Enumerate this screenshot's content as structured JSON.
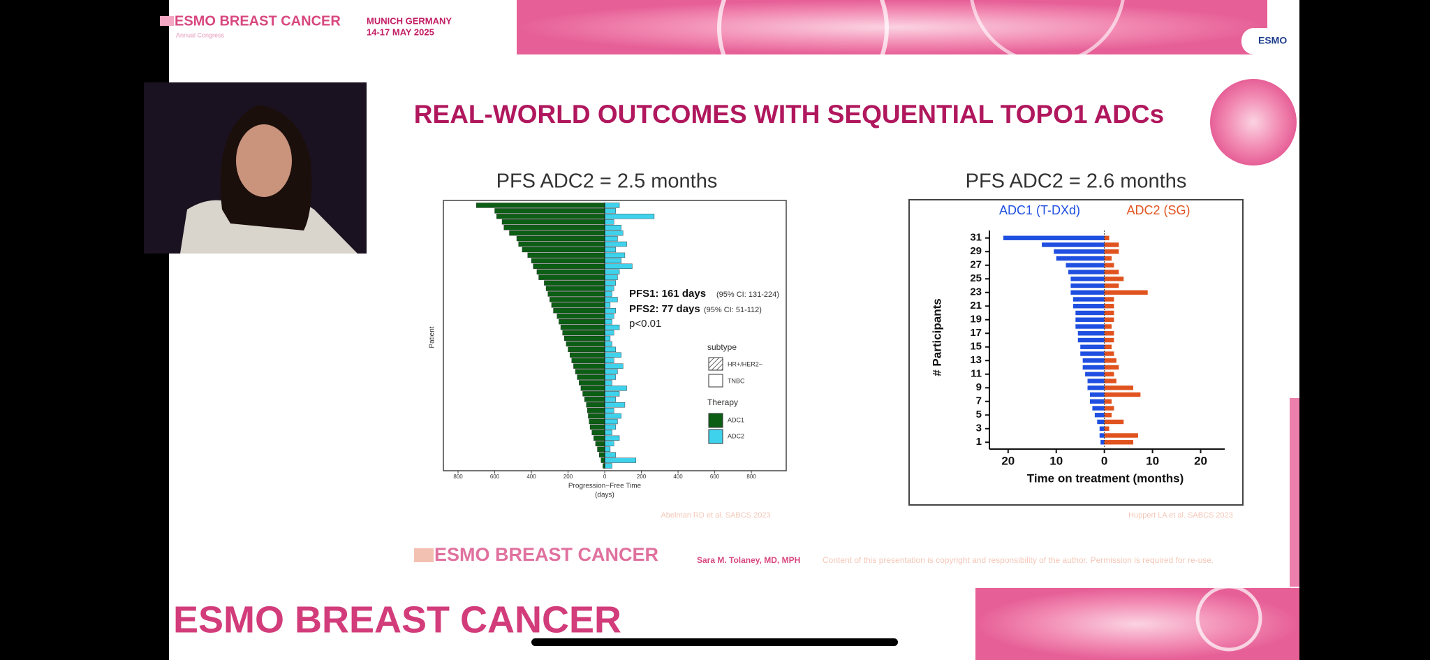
{
  "header": {
    "brand": "ESMO BREAST CANCER",
    "brand_sub": "Annual Congress",
    "city": "MUNICH GERMANY",
    "dates": "14-17 MAY 2025",
    "logo": "ESMO"
  },
  "slide": {
    "title": "REAL-WORLD OUTCOMES WITH SEQUENTIAL TOPO1 ADCs",
    "footer_brand": "ESMO BREAST CANCER",
    "presenter": "Sara M. Tolaney, MD, MPH",
    "disclaimer": "Content of this presentation is copyright and responsibility of the author. Permission is required for re-use."
  },
  "banner": "ESMO BREAST CANCER",
  "left_chart": {
    "type": "bar",
    "title": "PFS ADC2 = 2.5 months",
    "xlabel": "Progression−Free Time",
    "xunit": "(days)",
    "ylabel": "Patient",
    "citation": "Abelman RD et al. SABCS 2023",
    "annotations": [
      "PFS1: 161 days",
      "(95% CI: 131-224)",
      "PFS2: 77 days",
      "(95% CI: 51-112)",
      "p<0.01"
    ],
    "legend_subtype_title": "subtype",
    "legend_subtypes": [
      "HR+/HER2−",
      "TNBC"
    ],
    "legend_therapy_title": "Therapy",
    "xlim": [
      -880,
      990
    ],
    "xticks": [
      {
        "value": -800,
        "label": "800"
      },
      {
        "value": -600,
        "label": "600"
      },
      {
        "value": -400,
        "label": "400"
      },
      {
        "value": -200,
        "label": "200"
      },
      0,
      200,
      400,
      600,
      800
    ],
    "series": [
      {
        "name": "ADC1",
        "color": "#0b5e14",
        "values": [
          -700,
          -600,
          -590,
          -560,
          -550,
          -520,
          -480,
          -470,
          -450,
          -420,
          -400,
          -390,
          -370,
          -360,
          -330,
          -320,
          -310,
          -300,
          -290,
          -280,
          -260,
          -250,
          -240,
          -230,
          -220,
          -210,
          -200,
          -190,
          -180,
          -170,
          -160,
          -150,
          -140,
          -130,
          -120,
          -110,
          -100,
          -95,
          -90,
          -85,
          -80,
          -70,
          -60,
          -50,
          -40,
          -30,
          -20,
          -10
        ]
      },
      {
        "name": "ADC2",
        "color": "#3fd2ec",
        "values": [
          80,
          60,
          270,
          50,
          90,
          100,
          70,
          120,
          60,
          110,
          90,
          150,
          80,
          70,
          60,
          50,
          40,
          70,
          30,
          60,
          50,
          40,
          80,
          50,
          30,
          40,
          60,
          90,
          50,
          100,
          70,
          60,
          40,
          120,
          80,
          60,
          110,
          50,
          90,
          70,
          60,
          40,
          80,
          50,
          30,
          60,
          170,
          40
        ]
      }
    ]
  },
  "right_chart": {
    "type": "bar",
    "title": "PFS ADC2 = 2.6 months",
    "xlabel": "Time on treatment (months)",
    "ylabel": "# Participants",
    "citation": "Huppert LA et al. SABCS 2023",
    "xlim": [
      -22,
      25
    ],
    "xticks": [
      {
        "value": -20,
        "label": "20"
      },
      {
        "value": -10,
        "label": "10"
      },
      0,
      10,
      20
    ],
    "ylim": [
      0,
      32
    ],
    "yticks": [
      1,
      3,
      5,
      7,
      9,
      11,
      13,
      15,
      17,
      19,
      21,
      23,
      25,
      27,
      29,
      31
    ],
    "participants": [
      1,
      2,
      3,
      4,
      5,
      6,
      7,
      8,
      9,
      10,
      11,
      12,
      13,
      14,
      15,
      16,
      17,
      18,
      19,
      20,
      21,
      22,
      23,
      24,
      25,
      26,
      27,
      28,
      29,
      30,
      31
    ],
    "series": [
      {
        "name": "ADC1 (T-DXd)",
        "color": "#1f4fe0",
        "values": [
          -0.8,
          -1,
          -1,
          -1.5,
          -2,
          -2.5,
          -3,
          -3,
          -3.5,
          -3.5,
          -4,
          -4.5,
          -4.5,
          -5,
          -5,
          -5.5,
          -5.5,
          -6,
          -6,
          -6,
          -6.5,
          -6.5,
          -7,
          -7,
          -7,
          -7.5,
          -8,
          -10,
          -10.5,
          -13,
          -21
        ]
      },
      {
        "name": "ADC2 (SG)",
        "color": "#e0531f",
        "values": [
          6,
          7,
          1,
          4,
          1.5,
          2,
          1.5,
          7.5,
          6,
          2.5,
          2,
          3,
          2.5,
          2,
          1.5,
          2,
          2,
          1.5,
          2,
          2,
          2,
          2,
          9,
          3,
          4,
          3,
          2,
          1.5,
          3,
          3,
          1
        ]
      }
    ]
  }
}
